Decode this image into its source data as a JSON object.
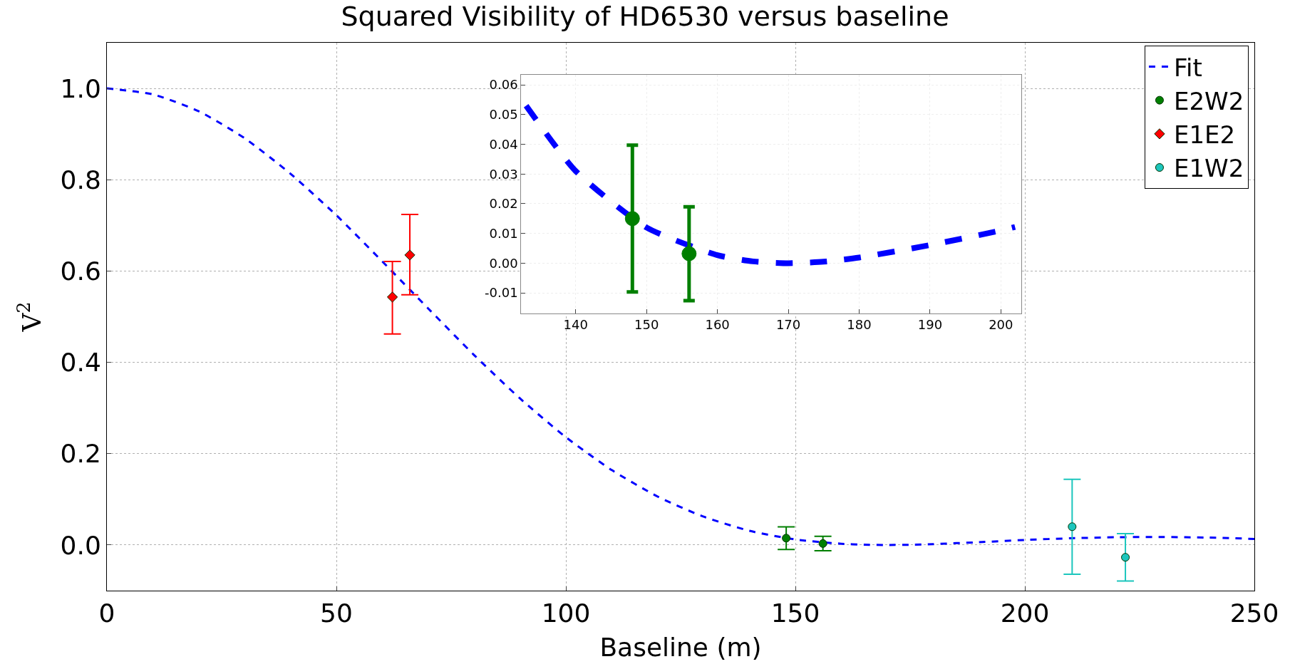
{
  "chart_data": [
    {
      "type": "scatter",
      "title": "Squared Visibility of HD6530 versus baseline",
      "xlabel": "Baseline (m)",
      "ylabel": "V$^{2}$",
      "xlim": [
        0,
        250
      ],
      "xticks": [
        0,
        50,
        100,
        150,
        200,
        250
      ],
      "ylim": [
        -0.1,
        1.1
      ],
      "yticks": [
        {
          "value": 0,
          "label": "0.0"
        },
        0.2,
        0.4,
        0.6,
        0.8,
        {
          "value": 1,
          "label": "1.0"
        }
      ],
      "grid": true,
      "legend": "top right",
      "series": [
        {
          "name": "Fit",
          "type": "line",
          "line_style": "dashed",
          "marker": "none",
          "color": "#0000ff",
          "x": [
            0,
            10,
            20,
            30,
            40,
            50,
            60,
            70,
            80,
            90,
            100,
            110,
            120,
            130,
            140,
            150,
            160,
            165,
            170,
            175,
            180,
            190,
            200,
            210,
            220,
            230,
            240,
            250
          ],
          "values": [
            1.0,
            0.987,
            0.95,
            0.891,
            0.813,
            0.722,
            0.621,
            0.518,
            0.416,
            0.321,
            0.236,
            0.164,
            0.106,
            0.062,
            0.031,
            0.012,
            0.0027,
            0.0006,
            0.0,
            0.0005,
            0.0019,
            0.0061,
            0.011,
            0.0147,
            0.017,
            0.0175,
            0.0162,
            0.0133
          ]
        },
        {
          "name": "E2W2",
          "marker": "circle",
          "color": "#007f00",
          "x": [
            148.0,
            156.0
          ],
          "values": [
            0.015,
            0.0032
          ],
          "errors": [
            [
              -0.0097,
              0.0397
            ],
            [
              -0.0126,
              0.019
            ]
          ]
        },
        {
          "name": "E1E2",
          "marker": "diamond",
          "color": "#ff0000",
          "x": [
            62.2,
            66.0
          ],
          "values": [
            0.543,
            0.635
          ],
          "errors": [
            [
              0.462,
              0.621
            ],
            [
              0.548,
              0.724
            ]
          ]
        },
        {
          "name": "E1W2",
          "marker": "circle",
          "color": "#1cc6bd",
          "x": [
            210.3,
            221.9
          ],
          "values": [
            0.04,
            -0.027
          ],
          "errors": [
            [
              -0.064,
              0.144
            ],
            [
              -0.079,
              0.025
            ]
          ]
        }
      ]
    },
    {
      "type": "scatter",
      "xlim": [
        132.3,
        202.9
      ],
      "xticks": [
        140,
        150,
        160,
        170,
        180,
        190,
        200
      ],
      "ylim": [
        -0.0169,
        0.0633
      ],
      "yticks": [
        {
          "value": -0.01,
          "label": "-0.01"
        },
        {
          "value": 0,
          "label": "0.00"
        },
        {
          "value": 0.01,
          "label": "0.01"
        },
        {
          "value": 0.02,
          "label": "0.02"
        },
        {
          "value": 0.03,
          "label": "0.03"
        },
        {
          "value": 0.04,
          "label": "0.04"
        },
        {
          "value": 0.05,
          "label": "0.05"
        },
        {
          "value": 0.06,
          "label": "0.06"
        }
      ],
      "grid": true,
      "series": [
        {
          "type": "line",
          "line_style": "dashed",
          "marker": "none",
          "color": "#0000ff",
          "x": [
            133,
            140,
            150,
            160,
            165,
            170,
            175,
            180,
            190,
            200,
            202
          ],
          "values": [
            0.053,
            0.031,
            0.012,
            0.0027,
            0.0006,
            0.0,
            0.0005,
            0.0019,
            0.0061,
            0.011,
            0.0122
          ]
        },
        {
          "marker": "circle",
          "color": "#007f00",
          "x": [
            148.0,
            156.0
          ],
          "values": [
            0.015,
            0.0032
          ],
          "errors": [
            [
              -0.0097,
              0.0397
            ],
            [
              -0.0126,
              0.019
            ]
          ]
        }
      ]
    }
  ]
}
